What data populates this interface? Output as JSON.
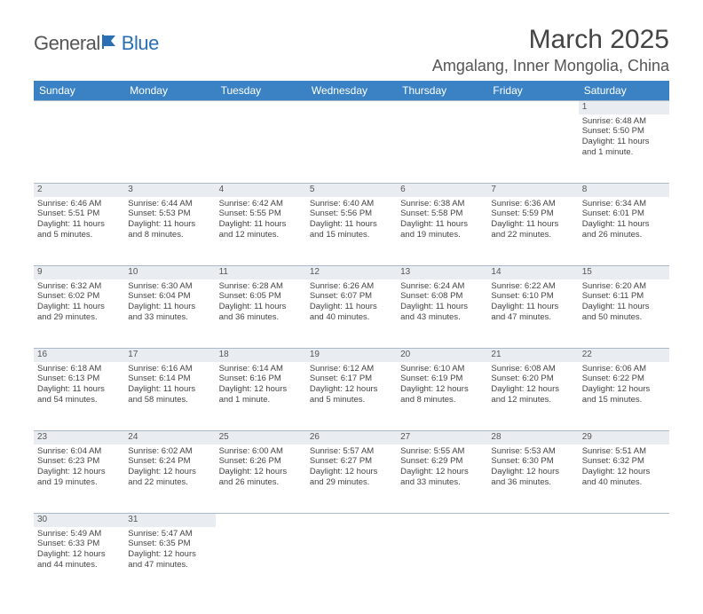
{
  "logo": {
    "part1": "General",
    "part2": "Blue"
  },
  "title": "March 2025",
  "location": "Amgalang, Inner Mongolia, China",
  "colors": {
    "header_bg": "#3b82c4",
    "header_text": "#ffffff",
    "daynum_bg": "#e9edf1",
    "border": "#7aa5c9",
    "logo_accent": "#2a6fb3"
  },
  "daysOfWeek": [
    "Sunday",
    "Monday",
    "Tuesday",
    "Wednesday",
    "Thursday",
    "Friday",
    "Saturday"
  ],
  "weeks": [
    [
      null,
      null,
      null,
      null,
      null,
      null,
      {
        "n": "1",
        "sunrise": "Sunrise: 6:48 AM",
        "sunset": "Sunset: 5:50 PM",
        "daylight1": "Daylight: 11 hours",
        "daylight2": "and 1 minute."
      }
    ],
    [
      {
        "n": "2",
        "sunrise": "Sunrise: 6:46 AM",
        "sunset": "Sunset: 5:51 PM",
        "daylight1": "Daylight: 11 hours",
        "daylight2": "and 5 minutes."
      },
      {
        "n": "3",
        "sunrise": "Sunrise: 6:44 AM",
        "sunset": "Sunset: 5:53 PM",
        "daylight1": "Daylight: 11 hours",
        "daylight2": "and 8 minutes."
      },
      {
        "n": "4",
        "sunrise": "Sunrise: 6:42 AM",
        "sunset": "Sunset: 5:55 PM",
        "daylight1": "Daylight: 11 hours",
        "daylight2": "and 12 minutes."
      },
      {
        "n": "5",
        "sunrise": "Sunrise: 6:40 AM",
        "sunset": "Sunset: 5:56 PM",
        "daylight1": "Daylight: 11 hours",
        "daylight2": "and 15 minutes."
      },
      {
        "n": "6",
        "sunrise": "Sunrise: 6:38 AM",
        "sunset": "Sunset: 5:58 PM",
        "daylight1": "Daylight: 11 hours",
        "daylight2": "and 19 minutes."
      },
      {
        "n": "7",
        "sunrise": "Sunrise: 6:36 AM",
        "sunset": "Sunset: 5:59 PM",
        "daylight1": "Daylight: 11 hours",
        "daylight2": "and 22 minutes."
      },
      {
        "n": "8",
        "sunrise": "Sunrise: 6:34 AM",
        "sunset": "Sunset: 6:01 PM",
        "daylight1": "Daylight: 11 hours",
        "daylight2": "and 26 minutes."
      }
    ],
    [
      {
        "n": "9",
        "sunrise": "Sunrise: 6:32 AM",
        "sunset": "Sunset: 6:02 PM",
        "daylight1": "Daylight: 11 hours",
        "daylight2": "and 29 minutes."
      },
      {
        "n": "10",
        "sunrise": "Sunrise: 6:30 AM",
        "sunset": "Sunset: 6:04 PM",
        "daylight1": "Daylight: 11 hours",
        "daylight2": "and 33 minutes."
      },
      {
        "n": "11",
        "sunrise": "Sunrise: 6:28 AM",
        "sunset": "Sunset: 6:05 PM",
        "daylight1": "Daylight: 11 hours",
        "daylight2": "and 36 minutes."
      },
      {
        "n": "12",
        "sunrise": "Sunrise: 6:26 AM",
        "sunset": "Sunset: 6:07 PM",
        "daylight1": "Daylight: 11 hours",
        "daylight2": "and 40 minutes."
      },
      {
        "n": "13",
        "sunrise": "Sunrise: 6:24 AM",
        "sunset": "Sunset: 6:08 PM",
        "daylight1": "Daylight: 11 hours",
        "daylight2": "and 43 minutes."
      },
      {
        "n": "14",
        "sunrise": "Sunrise: 6:22 AM",
        "sunset": "Sunset: 6:10 PM",
        "daylight1": "Daylight: 11 hours",
        "daylight2": "and 47 minutes."
      },
      {
        "n": "15",
        "sunrise": "Sunrise: 6:20 AM",
        "sunset": "Sunset: 6:11 PM",
        "daylight1": "Daylight: 11 hours",
        "daylight2": "and 50 minutes."
      }
    ],
    [
      {
        "n": "16",
        "sunrise": "Sunrise: 6:18 AM",
        "sunset": "Sunset: 6:13 PM",
        "daylight1": "Daylight: 11 hours",
        "daylight2": "and 54 minutes."
      },
      {
        "n": "17",
        "sunrise": "Sunrise: 6:16 AM",
        "sunset": "Sunset: 6:14 PM",
        "daylight1": "Daylight: 11 hours",
        "daylight2": "and 58 minutes."
      },
      {
        "n": "18",
        "sunrise": "Sunrise: 6:14 AM",
        "sunset": "Sunset: 6:16 PM",
        "daylight1": "Daylight: 12 hours",
        "daylight2": "and 1 minute."
      },
      {
        "n": "19",
        "sunrise": "Sunrise: 6:12 AM",
        "sunset": "Sunset: 6:17 PM",
        "daylight1": "Daylight: 12 hours",
        "daylight2": "and 5 minutes."
      },
      {
        "n": "20",
        "sunrise": "Sunrise: 6:10 AM",
        "sunset": "Sunset: 6:19 PM",
        "daylight1": "Daylight: 12 hours",
        "daylight2": "and 8 minutes."
      },
      {
        "n": "21",
        "sunrise": "Sunrise: 6:08 AM",
        "sunset": "Sunset: 6:20 PM",
        "daylight1": "Daylight: 12 hours",
        "daylight2": "and 12 minutes."
      },
      {
        "n": "22",
        "sunrise": "Sunrise: 6:06 AM",
        "sunset": "Sunset: 6:22 PM",
        "daylight1": "Daylight: 12 hours",
        "daylight2": "and 15 minutes."
      }
    ],
    [
      {
        "n": "23",
        "sunrise": "Sunrise: 6:04 AM",
        "sunset": "Sunset: 6:23 PM",
        "daylight1": "Daylight: 12 hours",
        "daylight2": "and 19 minutes."
      },
      {
        "n": "24",
        "sunrise": "Sunrise: 6:02 AM",
        "sunset": "Sunset: 6:24 PM",
        "daylight1": "Daylight: 12 hours",
        "daylight2": "and 22 minutes."
      },
      {
        "n": "25",
        "sunrise": "Sunrise: 6:00 AM",
        "sunset": "Sunset: 6:26 PM",
        "daylight1": "Daylight: 12 hours",
        "daylight2": "and 26 minutes."
      },
      {
        "n": "26",
        "sunrise": "Sunrise: 5:57 AM",
        "sunset": "Sunset: 6:27 PM",
        "daylight1": "Daylight: 12 hours",
        "daylight2": "and 29 minutes."
      },
      {
        "n": "27",
        "sunrise": "Sunrise: 5:55 AM",
        "sunset": "Sunset: 6:29 PM",
        "daylight1": "Daylight: 12 hours",
        "daylight2": "and 33 minutes."
      },
      {
        "n": "28",
        "sunrise": "Sunrise: 5:53 AM",
        "sunset": "Sunset: 6:30 PM",
        "daylight1": "Daylight: 12 hours",
        "daylight2": "and 36 minutes."
      },
      {
        "n": "29",
        "sunrise": "Sunrise: 5:51 AM",
        "sunset": "Sunset: 6:32 PM",
        "daylight1": "Daylight: 12 hours",
        "daylight2": "and 40 minutes."
      }
    ],
    [
      {
        "n": "30",
        "sunrise": "Sunrise: 5:49 AM",
        "sunset": "Sunset: 6:33 PM",
        "daylight1": "Daylight: 12 hours",
        "daylight2": "and 44 minutes."
      },
      {
        "n": "31",
        "sunrise": "Sunrise: 5:47 AM",
        "sunset": "Sunset: 6:35 PM",
        "daylight1": "Daylight: 12 hours",
        "daylight2": "and 47 minutes."
      },
      null,
      null,
      null,
      null,
      null
    ]
  ]
}
